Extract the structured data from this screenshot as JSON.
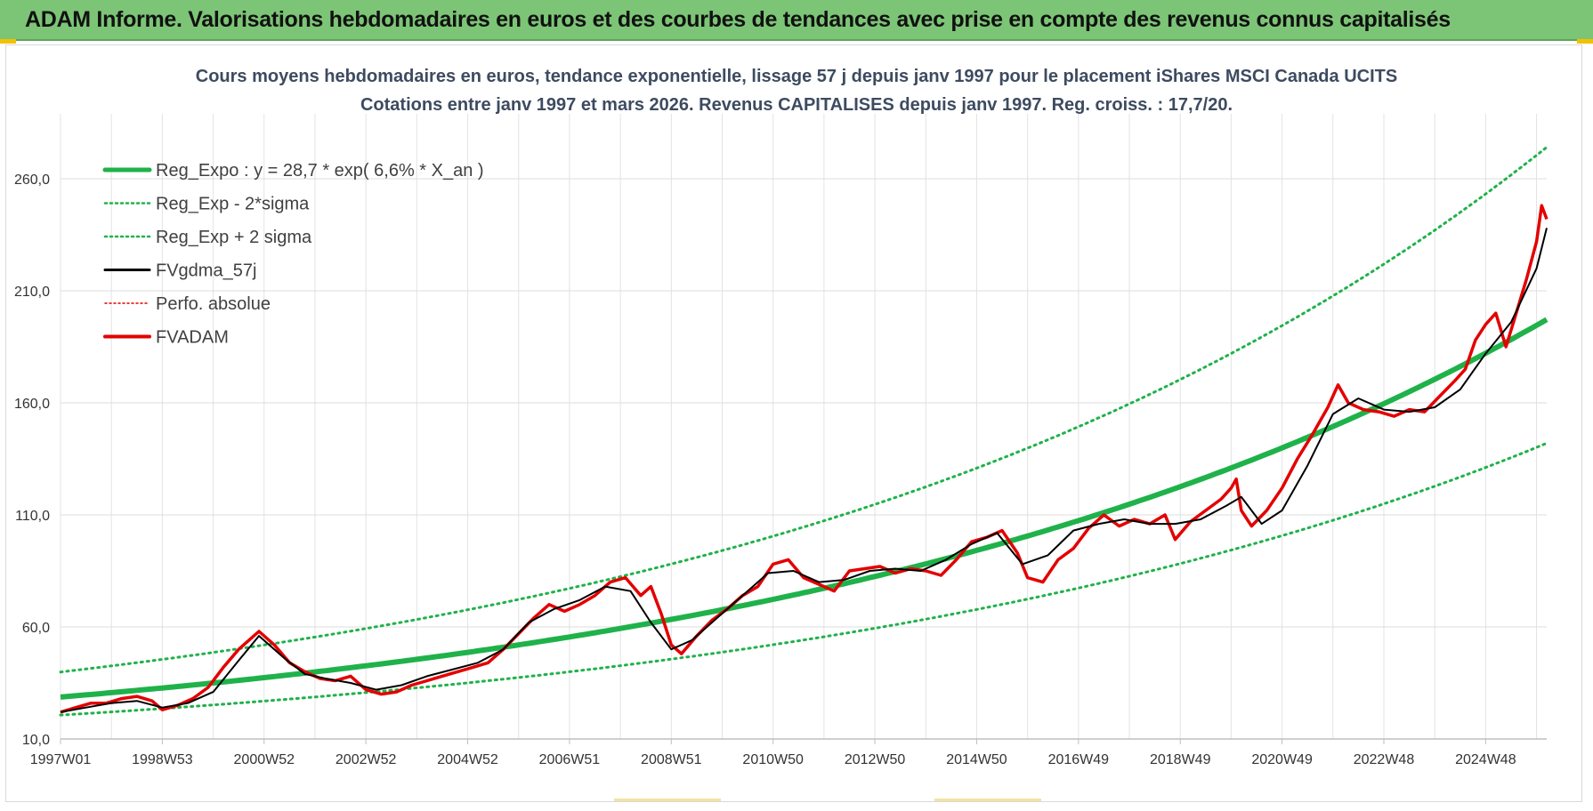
{
  "banner": {
    "title": "ADAM Informe. Valorisations hebdomadaires en euros et des courbes de tendances avec prise en compte des revenus connus capitalisés",
    "color": "#7cc576"
  },
  "chart_data": {
    "type": "line",
    "title_line1": "Cours moyens hebdomadaires en euros, tendance exponentielle, lissage 57 j depuis janv 1997 pour le placement iShares MSCI Canada UCITS",
    "title_line2": "Cotations entre janv 1997 et mars 2026. Revenus CAPITALISES depuis janv 1997. Reg. croiss. : 17,7/20.",
    "x_tick_labels": [
      "1997W01",
      "1998W53",
      "2000W52",
      "2002W52",
      "2004W52",
      "2006W51",
      "2008W51",
      "2010W50",
      "2012W50",
      "2014W50",
      "2016W49",
      "2018W49",
      "2020W49",
      "2022W48",
      "2024W48"
    ],
    "x_tick_years": [
      1997.0,
      1999.0,
      2001.0,
      2003.0,
      2005.0,
      2007.0,
      2009.0,
      2011.0,
      2013.0,
      2015.0,
      2017.0,
      2019.0,
      2021.0,
      2023.0,
      2025.0
    ],
    "xlim": [
      1997.0,
      2026.2
    ],
    "y_tick_labels": [
      "10,0",
      "60,0",
      "110,0",
      "160,0",
      "210,0",
      "260,0"
    ],
    "y_tick_values": [
      10,
      60,
      110,
      160,
      210,
      260
    ],
    "ylim": [
      10,
      285
    ],
    "grid": true,
    "legend_position": "top-left",
    "regression": {
      "a": 28.7,
      "rate": 0.066,
      "sigma_factor_low": 0.72,
      "sigma_factor_high": 1.39
    },
    "series": [
      {
        "name": "Reg_Expo : y = 28,7 * exp( 6,6% *  X_an )",
        "color": "#1fb24a",
        "style": "thick"
      },
      {
        "name": "Reg_Exp - 2*sigma",
        "color": "#1fb24a",
        "style": "dotted"
      },
      {
        "name": "Reg_Exp + 2 sigma",
        "color": "#1fb24a",
        "style": "dotted"
      },
      {
        "name": "FVgdma_57j",
        "color": "#000000",
        "style": "solid"
      },
      {
        "name": "Perfo. absolue",
        "color": "#e30000",
        "style": "dotted-thin"
      },
      {
        "name": "FVADAM",
        "color": "#e30000",
        "style": "thick"
      }
    ],
    "fvadam_points": {
      "x": [
        1997.0,
        1997.3,
        1997.6,
        1997.9,
        1998.2,
        1998.5,
        1998.8,
        1999.0,
        1999.3,
        1999.6,
        1999.9,
        2000.2,
        2000.5,
        2000.7,
        2000.9,
        2001.2,
        2001.5,
        2001.8,
        2002.1,
        2002.4,
        2002.7,
        2003.0,
        2003.3,
        2003.6,
        2003.9,
        2004.2,
        2004.5,
        2004.8,
        2005.1,
        2005.4,
        2005.7,
        2006.0,
        2006.3,
        2006.6,
        2006.9,
        2007.2,
        2007.5,
        2007.8,
        2008.1,
        2008.4,
        2008.6,
        2008.8,
        2009.0,
        2009.2,
        2009.5,
        2009.8,
        2010.1,
        2010.4,
        2010.7,
        2011.0,
        2011.3,
        2011.6,
        2011.9,
        2012.2,
        2012.5,
        2012.8,
        2013.1,
        2013.4,
        2013.7,
        2014.0,
        2014.3,
        2014.6,
        2014.9,
        2015.2,
        2015.5,
        2015.8,
        2016.0,
        2016.3,
        2016.6,
        2016.9,
        2017.2,
        2017.5,
        2017.8,
        2018.1,
        2018.4,
        2018.7,
        2018.9,
        2019.2,
        2019.5,
        2019.8,
        2020.0,
        2020.1,
        2020.2,
        2020.4,
        2020.7,
        2021.0,
        2021.3,
        2021.6,
        2021.9,
        2022.1,
        2022.3,
        2022.6,
        2022.9,
        2023.2,
        2023.5,
        2023.8,
        2024.1,
        2024.4,
        2024.6,
        2024.8,
        2025.0,
        2025.2,
        2025.4,
        2025.6,
        2025.8,
        2026.0,
        2026.1,
        2026.2
      ],
      "y": [
        22,
        24,
        26,
        26,
        28,
        29,
        27,
        23,
        25,
        28,
        33,
        42,
        50,
        54,
        58,
        52,
        44,
        40,
        37,
        36,
        38,
        32,
        30,
        31,
        34,
        36,
        38,
        40,
        42,
        44,
        50,
        57,
        64,
        70,
        67,
        70,
        74,
        80,
        82,
        74,
        78,
        66,
        52,
        48,
        56,
        63,
        68,
        74,
        78,
        88,
        90,
        82,
        79,
        76,
        85,
        86,
        87,
        84,
        86,
        85,
        83,
        90,
        98,
        100,
        103,
        93,
        82,
        80,
        90,
        95,
        104,
        110,
        105,
        108,
        106,
        110,
        99,
        107,
        112,
        117,
        122,
        126,
        112,
        105,
        112,
        122,
        135,
        146,
        158,
        168,
        160,
        157,
        156,
        154,
        157,
        156,
        163,
        170,
        175,
        188,
        195,
        200,
        185,
        200,
        215,
        232,
        248,
        242
      ]
    },
    "fvgdma_points": {
      "x": [
        1997.0,
        1997.5,
        1998.0,
        1998.5,
        1999.0,
        1999.5,
        2000.0,
        2000.5,
        2000.9,
        2001.4,
        2001.8,
        2002.2,
        2002.7,
        2003.2,
        2003.7,
        2004.2,
        2004.7,
        2005.2,
        2005.7,
        2006.2,
        2006.7,
        2007.2,
        2007.7,
        2008.2,
        2008.6,
        2009.0,
        2009.4,
        2009.9,
        2010.4,
        2010.9,
        2011.4,
        2011.9,
        2012.4,
        2012.9,
        2013.4,
        2013.9,
        2014.4,
        2014.9,
        2015.4,
        2015.9,
        2016.4,
        2016.9,
        2017.4,
        2017.9,
        2018.4,
        2018.9,
        2019.4,
        2019.9,
        2020.2,
        2020.6,
        2021.0,
        2021.5,
        2022.0,
        2022.5,
        2023.0,
        2023.5,
        2024.0,
        2024.5,
        2025.0,
        2025.5,
        2026.0,
        2026.2
      ],
      "y": [
        22,
        24,
        26,
        27,
        24,
        26,
        31,
        45,
        56,
        46,
        39,
        37,
        35,
        32,
        34,
        38,
        41,
        44,
        50,
        62,
        68,
        72,
        78,
        76,
        62,
        50,
        54,
        64,
        74,
        84,
        85,
        80,
        81,
        85,
        86,
        85,
        90,
        97,
        102,
        88,
        92,
        103,
        106,
        108,
        106,
        106,
        108,
        114,
        118,
        106,
        112,
        132,
        155,
        162,
        157,
        156,
        158,
        166,
        182,
        196,
        220,
        238
      ]
    }
  }
}
